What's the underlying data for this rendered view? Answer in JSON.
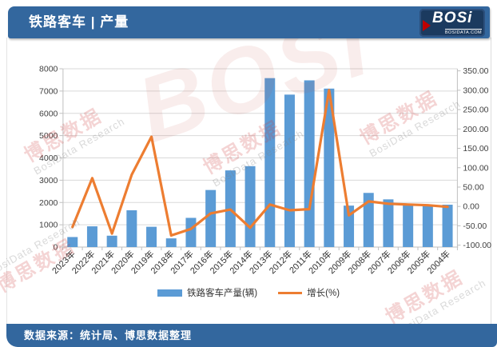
{
  "header": {
    "title": "铁路客车 | 产量",
    "logo": {
      "text": "BOSi",
      "subtext": "BOSIDATA.COM"
    }
  },
  "footer": {
    "source": "数据来源：统计局、博思数据整理"
  },
  "legend": {
    "bar_label": "铁路客车产量(辆)",
    "line_label": "增长(%)"
  },
  "watermark": {
    "cn": "博思数据",
    "en": "BosiData Research",
    "logo": "BOSi"
  },
  "colors": {
    "bar": "#5B9BD5",
    "line": "#ED7D31",
    "header_blue": "#33679E",
    "grid": "#D9D9D9",
    "axis": "#BFBFBF",
    "axis_text": "#404040"
  },
  "chart_data": {
    "type": "bar+line",
    "categories": [
      "2023年",
      "2022年",
      "2021年",
      "2020年",
      "2019年",
      "2018年",
      "2017年",
      "2016年",
      "2015年",
      "2014年",
      "2013年",
      "2012年",
      "2011年",
      "2010年",
      "2009年",
      "2008年",
      "2007年",
      "2006年",
      "2005年",
      "2004年"
    ],
    "series": [
      {
        "name": "铁路客车产量(辆)",
        "type": "bar",
        "axis": "left",
        "values": [
          450,
          930,
          510,
          1650,
          910,
          390,
          1310,
          2560,
          3440,
          3630,
          7580,
          6840,
          7480,
          7110,
          1860,
          2430,
          2140,
          1950,
          1850,
          1900
        ]
      },
      {
        "name": "增长(%)",
        "type": "line",
        "axis": "right",
        "values": [
          -53,
          73,
          -70,
          82,
          180,
          -75,
          -58,
          -18,
          -8,
          -55,
          5,
          -10,
          -7,
          300,
          -23,
          13,
          7,
          5,
          3,
          -1
        ]
      }
    ],
    "left_axis": {
      "min": 0,
      "max": 8000,
      "step": 1000,
      "ticks": [
        "0",
        "1000",
        "2000",
        "3000",
        "4000",
        "5000",
        "6000",
        "7000",
        "8000"
      ]
    },
    "right_axis": {
      "min": -100,
      "max": 350,
      "step": 50,
      "decimals": 2,
      "ticks": [
        "-100.00",
        "-50.00",
        "0.00",
        "50.00",
        "100.00",
        "150.00",
        "200.00",
        "250.00",
        "300.00",
        "350.00"
      ]
    },
    "grid": true,
    "legend_position": "bottom",
    "x_label_rotation": -45
  }
}
